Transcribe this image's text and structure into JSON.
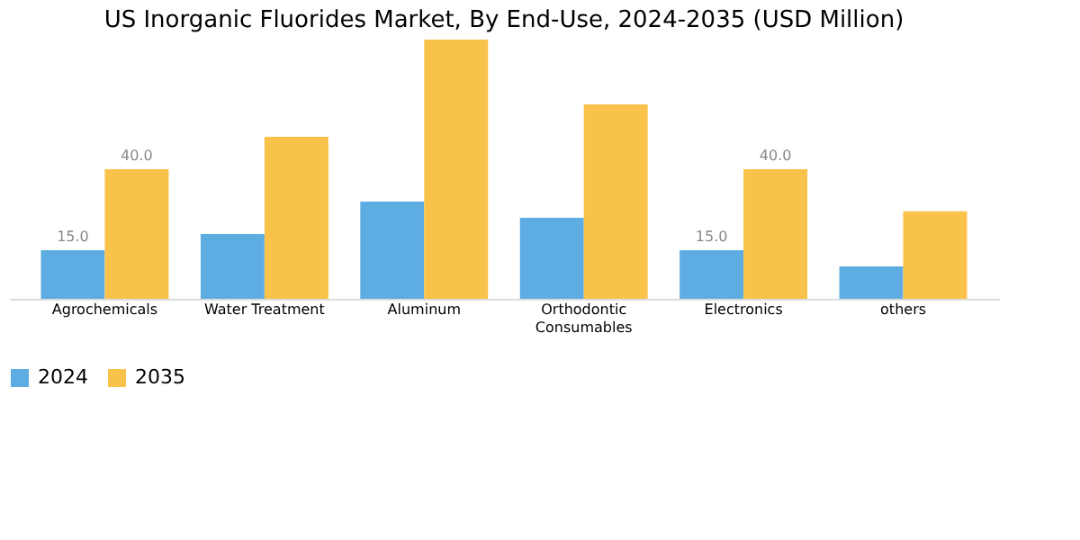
{
  "chart_data": {
    "type": "bar",
    "title": "US Inorganic Fluorides Market, By End-Use, 2024-2035 (USD Million)",
    "categories": [
      "Agrochemicals",
      "Water Treatment",
      "Aluminum",
      "Orthodontic Consumables",
      "Electronics",
      "others"
    ],
    "series": [
      {
        "name": "2024",
        "color": "#5dade2",
        "values": [
          15,
          20,
          30,
          25,
          15,
          10
        ],
        "value_labels": [
          "15.0",
          null,
          null,
          null,
          "15.0",
          null
        ]
      },
      {
        "name": "2035",
        "color": "#f9c24a",
        "values": [
          40,
          50,
          80,
          60,
          40,
          27
        ],
        "value_labels": [
          "40.0",
          null,
          null,
          null,
          "40.0",
          null
        ]
      }
    ],
    "legend": "bottom",
    "grid": false
  }
}
